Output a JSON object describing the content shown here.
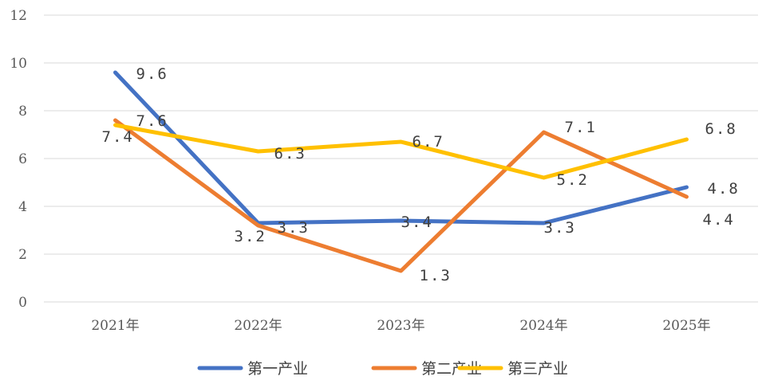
{
  "chart_data": {
    "type": "line",
    "title": "",
    "xlabel": "",
    "ylabel": "",
    "categories": [
      "2021年",
      "2022年",
      "2023年",
      "2024年",
      "2025年"
    ],
    "ylim": [
      0,
      12
    ],
    "yticks": [
      "0",
      "2",
      "4",
      "6",
      "8",
      "10",
      "12"
    ],
    "grid": true,
    "legend_position": "bottom",
    "series": [
      {
        "name": "第一产业",
        "color": "#4472c4",
        "values": [
          9.6,
          3.3,
          3.4,
          3.3,
          4.8
        ],
        "labels": [
          "9.6",
          "3.3",
          "3.4",
          "3.3",
          "4.8"
        ]
      },
      {
        "name": "第二产业",
        "color": "#ed7d31",
        "values": [
          7.6,
          3.2,
          1.3,
          7.1,
          4.4
        ],
        "labels": [
          "7.6",
          "3.2",
          "1.3",
          "7.1",
          "4.4"
        ]
      },
      {
        "name": "第三产业",
        "color": "#ffc000",
        "values": [
          7.4,
          6.3,
          6.7,
          5.2,
          6.8
        ],
        "labels": [
          "7.4",
          "6.3",
          "6.7",
          "5.2",
          "6.8"
        ]
      }
    ]
  }
}
